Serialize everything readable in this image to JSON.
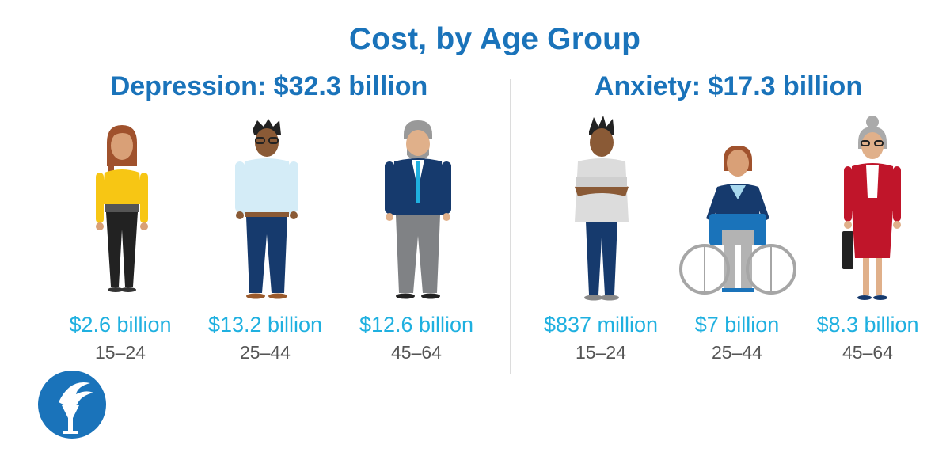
{
  "title": "Cost, by Age Group",
  "colors": {
    "heading": "#1a73ba",
    "amount": "#1fb0e0"
  },
  "sections": [
    {
      "title": "Depression: $32.3 billion",
      "groups": [
        {
          "amount": "$2.6 billion",
          "age": "15–24"
        },
        {
          "amount": "$13.2 billion",
          "age": "25–44"
        },
        {
          "amount": "$12.6 billion",
          "age": "45–64"
        }
      ]
    },
    {
      "title": "Anxiety: $17.3 billion",
      "groups": [
        {
          "amount": "$837 million",
          "age": "15–24"
        },
        {
          "amount": "$7 billion",
          "age": "25–44"
        },
        {
          "amount": "$8.3 billion",
          "age": "45–64"
        }
      ]
    }
  ],
  "icons": [
    "woman-yellow-top-illustration",
    "man-light-blue-shirt-illustration",
    "man-suit-illustration",
    "young-man-arms-crossed-illustration",
    "woman-wheelchair-illustration",
    "older-woman-red-suit-illustration",
    "torch-logo-icon"
  ]
}
